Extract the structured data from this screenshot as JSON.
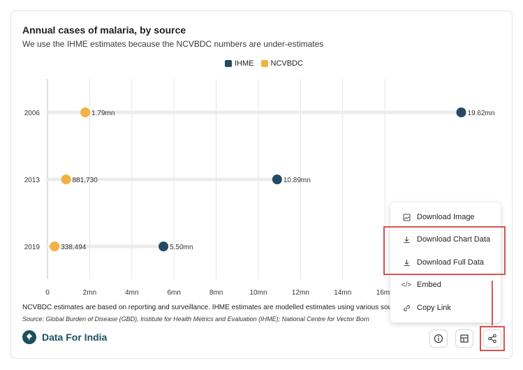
{
  "chart_data": {
    "type": "dumbbell",
    "title": "Annual cases of malaria, by source",
    "subtitle": "We use the IHME estimates because the NCVBDC numbers are under-estimates",
    "legend": [
      {
        "name": "IHME",
        "color": "#244a66"
      },
      {
        "name": "NCVBDC",
        "color": "#f2b142"
      }
    ],
    "categories": [
      "2006",
      "2013",
      "2019"
    ],
    "series": [
      {
        "name": "IHME",
        "values": [
          19.62,
          10.89,
          5.5
        ],
        "labels": [
          "19.62mn",
          "10.89mn",
          "5.50mn"
        ]
      },
      {
        "name": "NCVBDC",
        "values": [
          1.79,
          0.88173,
          0.338494
        ],
        "labels": [
          "1.79mn",
          "881,730",
          "338,494"
        ]
      }
    ],
    "x_ticks": [
      "0",
      "2mn",
      "4mn",
      "6mn",
      "8mn",
      "10mn",
      "12mn",
      "14mn",
      "16mn"
    ],
    "xlim": [
      0,
      22
    ],
    "legend_position": "top-center"
  },
  "note": "NCVBDC estimates are based on reporting and surveillance. IHME estimates are modelled estimates using various sou",
  "source": "Source: Global Burden of Disease (GBD), Institute for Health Metrics and Evaluation (IHME); National Centre for Vector Born",
  "brand": {
    "name": "Data For India"
  },
  "menu": {
    "items": [
      {
        "label": "Download Image",
        "icon": "image-download-icon"
      },
      {
        "label": "Download Chart Data",
        "icon": "download-icon"
      },
      {
        "label": "Download Full Data",
        "icon": "download-icon"
      },
      {
        "label": "Embed",
        "icon": "code-icon"
      },
      {
        "label": "Copy Link",
        "icon": "link-icon"
      }
    ]
  },
  "toolbar": {
    "info": "info-icon",
    "table": "table-icon",
    "share": "share-icon"
  },
  "colors": {
    "accent": "#d9534f",
    "brand": "#1d4f5e",
    "ihme": "#244a66",
    "ncvbdc": "#f2b142"
  }
}
